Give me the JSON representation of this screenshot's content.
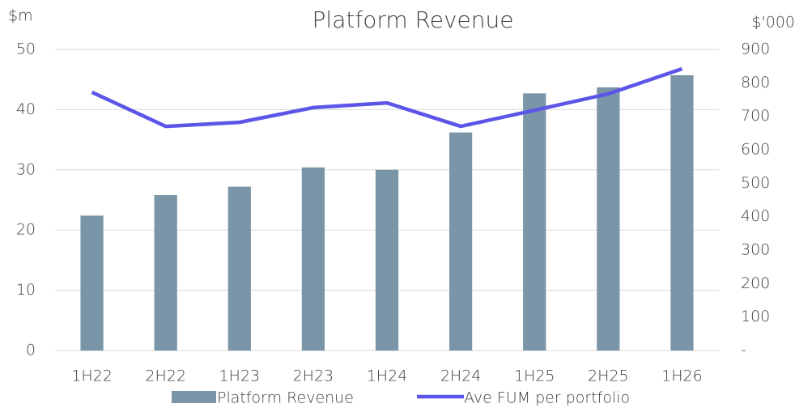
{
  "chart_data": {
    "type": "bar_line",
    "title": "Platform Revenue",
    "y_label": "$m",
    "y2_label": "$'000",
    "categories": [
      "1H22",
      "2H22",
      "1H23",
      "2H23",
      "1H24",
      "2H24",
      "1H25",
      "2H25",
      "1H26"
    ],
    "series": [
      {
        "name": "Platform Revenue",
        "type": "bar",
        "color": "#7a95a8",
        "values": [
          22.4,
          25.8,
          27.2,
          30.4,
          30.0,
          36.2,
          42.7,
          43.7,
          45.7
        ]
      },
      {
        "name": "Ave FUM per portfolio",
        "type": "line",
        "axis": "y2",
        "color": "#5b55e8",
        "values": [
          772,
          670,
          682,
          726,
          740,
          670,
          718,
          767,
          842
        ]
      }
    ],
    "ylim": [
      0,
      50
    ],
    "yticks": [
      0,
      10,
      20,
      30,
      40,
      50
    ],
    "y2lim": [
      0,
      900
    ],
    "y2ticks": [
      {
        "value": 0,
        "label": "-"
      },
      100,
      200,
      300,
      400,
      500,
      600,
      700,
      800,
      900
    ],
    "grid": true,
    "legend": "bottom"
  }
}
